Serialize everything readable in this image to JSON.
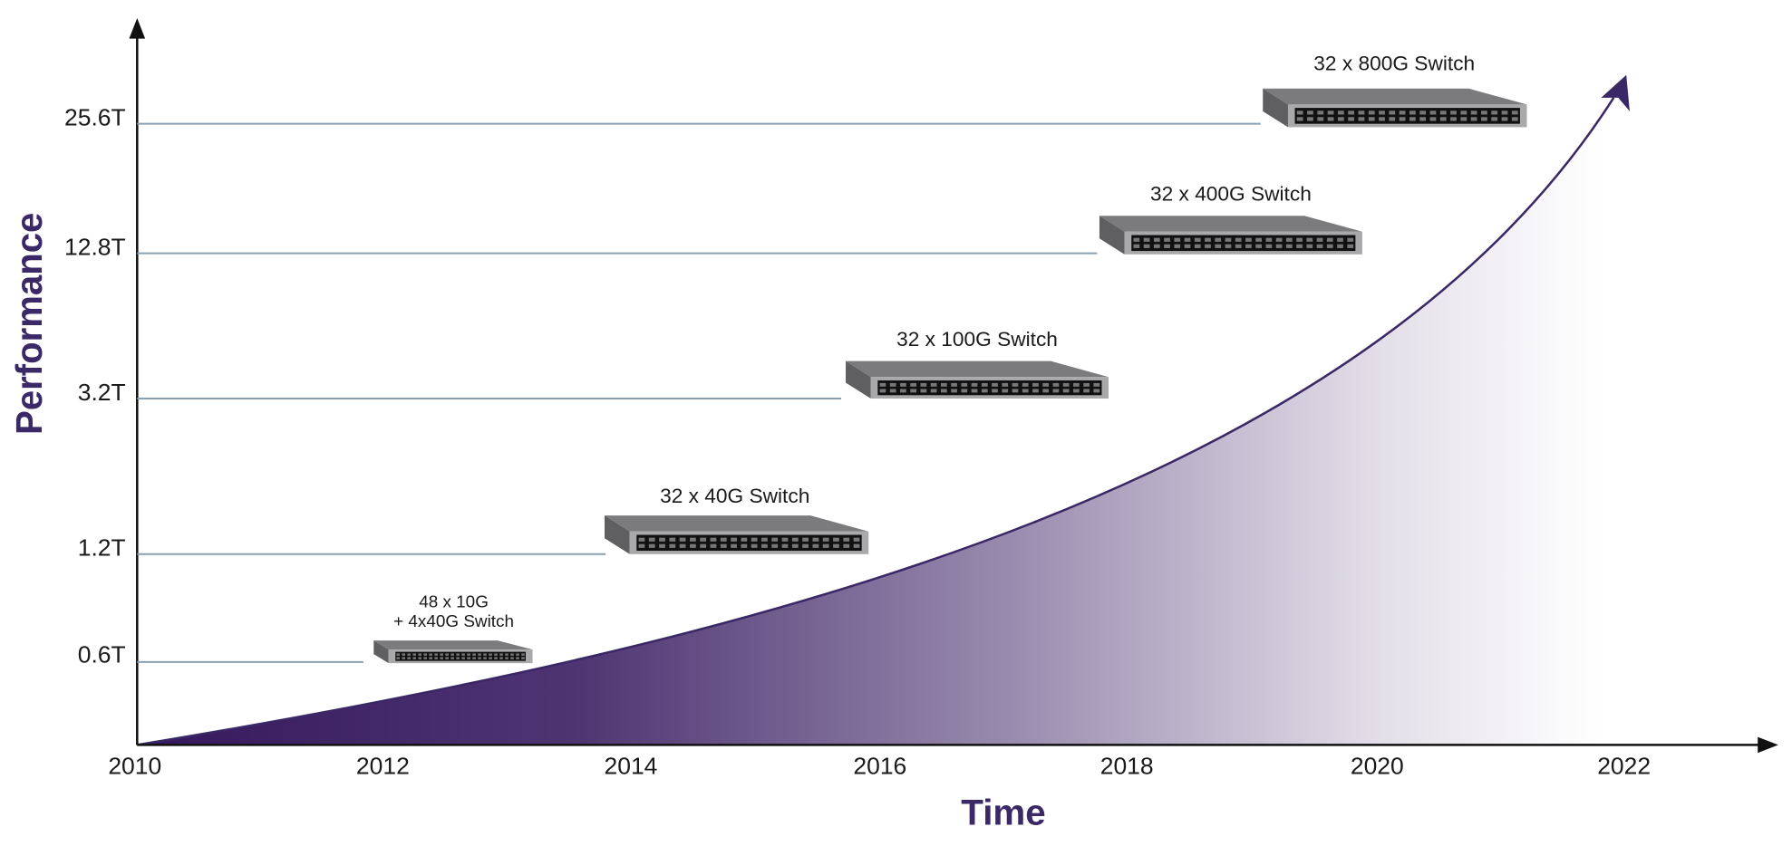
{
  "x_axis": {
    "title": "Time",
    "labels": [
      "2010",
      "2012",
      "2014",
      "2016",
      "2018",
      "2020",
      "2022"
    ]
  },
  "y_axis": {
    "title": "Performance",
    "labels": [
      "25.6T",
      "12.8T",
      "3.2T",
      "1.2T",
      "0.6T"
    ]
  },
  "switches": [
    {
      "label": [
        "32 x 800G Switch"
      ]
    },
    {
      "label": [
        "32 x 400G Switch"
      ]
    },
    {
      "label": [
        "32 x 100G Switch"
      ]
    },
    {
      "label": [
        "32 x 40G Switch"
      ]
    },
    {
      "label": [
        "48 x 10G",
        "+ 4x40G Switch"
      ]
    }
  ]
}
